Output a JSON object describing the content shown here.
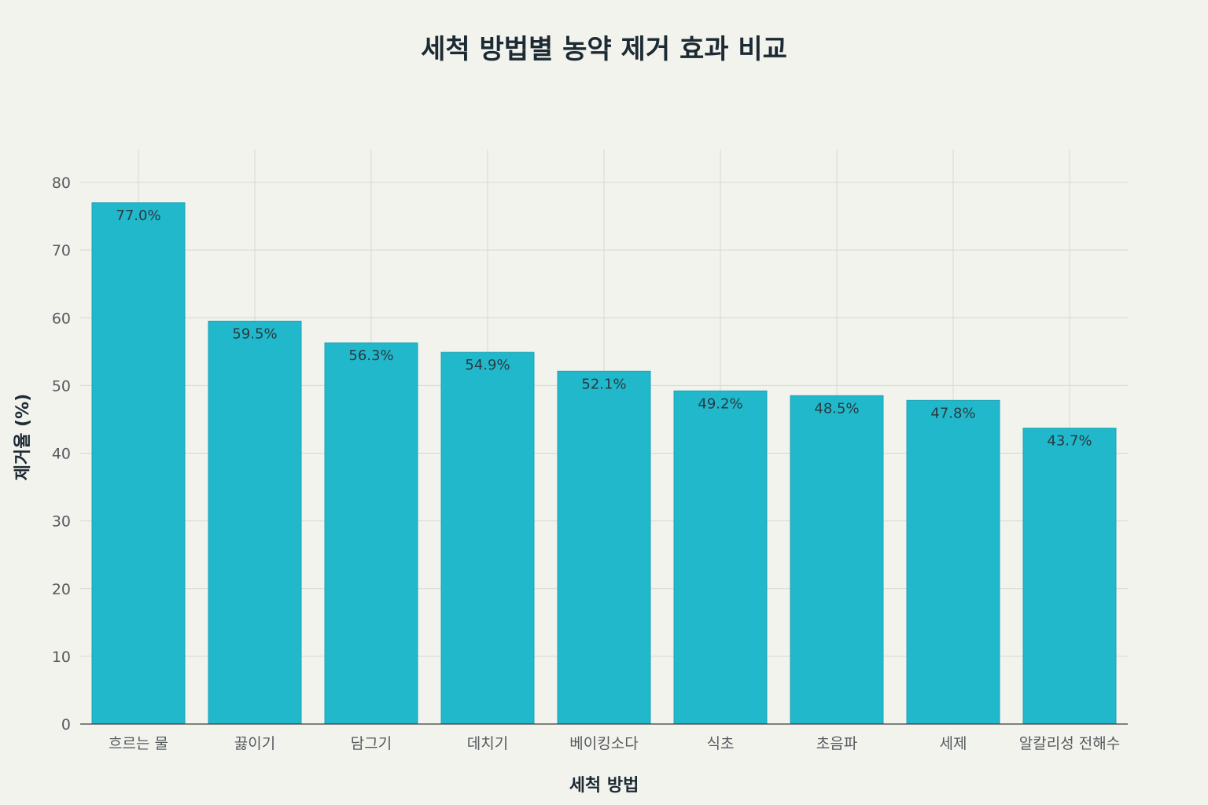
{
  "chart_data": {
    "type": "bar",
    "title": "세척 방법별 농약 제거 효과 비교",
    "xlabel": "세척 방법",
    "ylabel": "제거율 (%)",
    "categories": [
      "흐르는 물",
      "끓이기",
      "담그기",
      "데치기",
      "베이킹소다",
      "식초",
      "초음파",
      "세제",
      "알칼리성 전해수"
    ],
    "values": [
      77.0,
      59.5,
      56.3,
      54.9,
      52.1,
      49.2,
      48.5,
      47.8,
      43.7
    ],
    "data_labels": [
      "77.0%",
      "59.5%",
      "56.3%",
      "54.9%",
      "52.1%",
      "49.2%",
      "48.5%",
      "47.8%",
      "43.7%"
    ],
    "yticks": [
      0,
      10,
      20,
      30,
      40,
      50,
      60,
      70,
      80
    ],
    "ylim": [
      0,
      85
    ],
    "grid": true,
    "legend": "none",
    "bar_color": "#21b8cc"
  }
}
